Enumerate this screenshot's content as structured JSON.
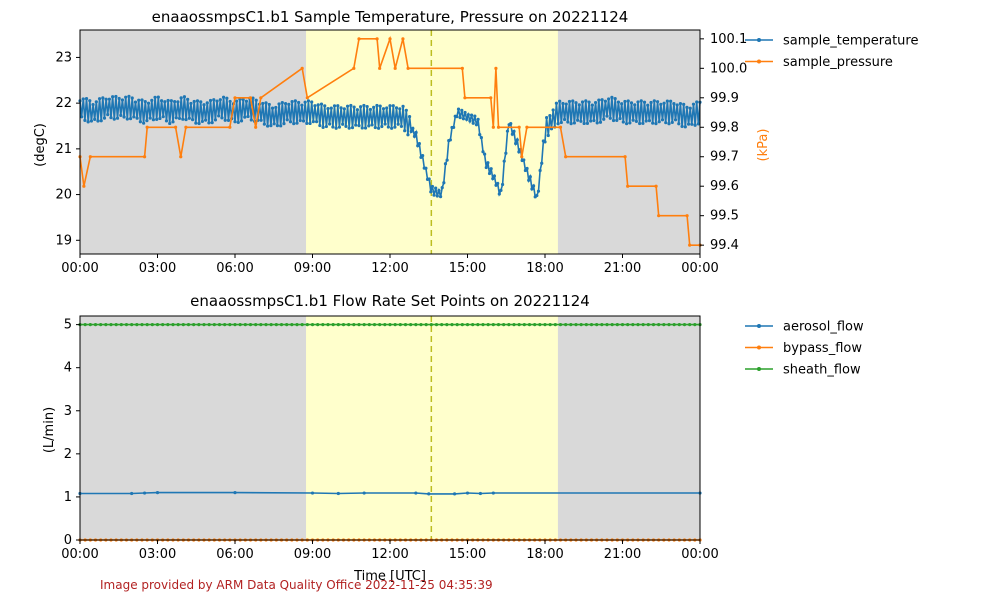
{
  "credit": "Image provided by ARM Data Quality Office 2022-11-25 04:35:39",
  "colors": {
    "blue": "#1f77b4",
    "orange": "#ff7f0e",
    "green": "#2ca02c",
    "night_shade": "#d9d9d9",
    "day_shade": "#ffffcc",
    "solar_noon_line": "#bcbd22"
  },
  "shading": {
    "day_start_hour": 8.75,
    "day_end_hour": 18.5,
    "solar_noon_hour": 13.6
  },
  "chart_data": [
    {
      "type": "line",
      "title": "enaaossmpsC1.b1 Sample Temperature, Pressure on 20221124",
      "xlabel": "",
      "ylabel": "(degC)",
      "ylabel_right": "(kPa)",
      "xlim": [
        0,
        24
      ],
      "ylim": [
        18.7,
        23.6
      ],
      "ylim_right": [
        99.37,
        100.13
      ],
      "x_ticks": [
        "00:00",
        "03:00",
        "06:00",
        "09:00",
        "12:00",
        "15:00",
        "18:00",
        "21:00",
        "00:00"
      ],
      "y_ticks": [
        "19",
        "20",
        "21",
        "22",
        "23"
      ],
      "y_ticks_right": [
        "99.4",
        "99.5",
        "99.6",
        "99.7",
        "99.8",
        "99.9",
        "100.0",
        "100.1"
      ],
      "legend_placement": "outside-right",
      "series": [
        {
          "name": "sample_temperature",
          "axis": "left",
          "color": "#1f77b4",
          "points": [
            [
              0,
              21.9
            ],
            [
              0.5,
              21.8
            ],
            [
              1,
              21.9
            ],
            [
              1.5,
              21.9
            ],
            [
              2,
              21.9
            ],
            [
              2.5,
              21.8
            ],
            [
              3,
              21.9
            ],
            [
              3.5,
              21.8
            ],
            [
              4,
              21.9
            ],
            [
              4.5,
              21.8
            ],
            [
              5,
              21.8
            ],
            [
              5.5,
              21.9
            ],
            [
              6,
              21.8
            ],
            [
              6.5,
              21.9
            ],
            [
              7,
              21.8
            ],
            [
              7.5,
              21.7
            ],
            [
              8,
              21.8
            ],
            [
              8.5,
              21.8
            ],
            [
              9,
              21.8
            ],
            [
              9.5,
              21.7
            ],
            [
              10,
              21.7
            ],
            [
              10.5,
              21.7
            ],
            [
              11,
              21.7
            ],
            [
              11.5,
              21.7
            ],
            [
              12,
              21.7
            ],
            [
              12.5,
              21.7
            ],
            [
              13,
              21.3
            ],
            [
              13.3,
              20.7
            ],
            [
              13.6,
              20.1
            ],
            [
              14,
              20.0
            ],
            [
              14.3,
              21.2
            ],
            [
              14.6,
              21.8
            ],
            [
              15,
              21.7
            ],
            [
              15.4,
              21.6
            ],
            [
              15.7,
              20.7
            ],
            [
              16,
              20.4
            ],
            [
              16.3,
              20.0
            ],
            [
              16.6,
              21.6
            ],
            [
              17,
              21.0
            ],
            [
              17.3,
              20.5
            ],
            [
              17.7,
              19.9
            ],
            [
              18,
              21.4
            ],
            [
              18.5,
              21.8
            ],
            [
              19,
              21.8
            ],
            [
              19.5,
              21.8
            ],
            [
              20,
              21.8
            ],
            [
              20.5,
              21.9
            ],
            [
              21,
              21.8
            ],
            [
              21.5,
              21.8
            ],
            [
              22,
              21.8
            ],
            [
              22.5,
              21.8
            ],
            [
              23,
              21.8
            ],
            [
              23.5,
              21.7
            ],
            [
              24,
              21.8
            ]
          ],
          "oscillation_amplitude_degC": 0.25
        },
        {
          "name": "sample_pressure",
          "axis": "right",
          "color": "#ff7f0e",
          "points": [
            [
              0,
              99.7
            ],
            [
              0.15,
              99.6
            ],
            [
              0.4,
              99.7
            ],
            [
              2.5,
              99.7
            ],
            [
              2.6,
              99.8
            ],
            [
              3.7,
              99.8
            ],
            [
              3.9,
              99.7
            ],
            [
              4.1,
              99.8
            ],
            [
              5.8,
              99.8
            ],
            [
              6,
              99.9
            ],
            [
              6.6,
              99.9
            ],
            [
              6.8,
              99.8
            ],
            [
              7,
              99.9
            ],
            [
              8.8,
              99.9
            ],
            [
              8.6,
              100.0
            ],
            [
              10.6,
              100.0
            ],
            [
              10.8,
              100.1
            ],
            [
              11.5,
              100.1
            ],
            [
              11.6,
              100.0
            ],
            [
              12.0,
              100.1
            ],
            [
              12.2,
              100.0
            ],
            [
              12.5,
              100.1
            ],
            [
              12.7,
              100.0
            ],
            [
              14.8,
              100.0
            ],
            [
              14.9,
              99.9
            ],
            [
              15.9,
              99.9
            ],
            [
              16.0,
              99.8
            ],
            [
              16.1,
              100.0
            ],
            [
              16.2,
              99.8
            ],
            [
              17.0,
              99.8
            ],
            [
              17.1,
              99.7
            ],
            [
              17.3,
              99.8
            ],
            [
              18.6,
              99.8
            ],
            [
              18.8,
              99.7
            ],
            [
              21.1,
              99.7
            ],
            [
              21.2,
              99.6
            ],
            [
              22.3,
              99.6
            ],
            [
              22.4,
              99.5
            ],
            [
              23.5,
              99.5
            ],
            [
              23.6,
              99.4
            ],
            [
              24,
              99.4
            ]
          ]
        }
      ]
    },
    {
      "type": "line",
      "title": "enaaossmpsC1.b1 Flow Rate Set Points on 20221124",
      "xlabel": "Time [UTC]",
      "ylabel": "(L/min)",
      "xlim": [
        0,
        24
      ],
      "ylim": [
        0,
        5.2
      ],
      "x_ticks": [
        "00:00",
        "03:00",
        "06:00",
        "09:00",
        "12:00",
        "15:00",
        "18:00",
        "21:00",
        "00:00"
      ],
      "y_ticks": [
        "0",
        "1",
        "2",
        "3",
        "4",
        "5"
      ],
      "legend_placement": "outside-right",
      "series": [
        {
          "name": "aerosol_flow",
          "color": "#1f77b4",
          "points": [
            [
              0,
              1.08
            ],
            [
              2,
              1.08
            ],
            [
              2.5,
              1.09
            ],
            [
              3,
              1.1
            ],
            [
              6,
              1.1
            ],
            [
              9,
              1.09
            ],
            [
              10,
              1.08
            ],
            [
              11,
              1.09
            ],
            [
              13,
              1.09
            ],
            [
              13.5,
              1.07
            ],
            [
              14.5,
              1.07
            ],
            [
              15,
              1.09
            ],
            [
              15.5,
              1.08
            ],
            [
              16,
              1.09
            ],
            [
              24,
              1.09
            ]
          ]
        },
        {
          "name": "bypass_flow",
          "color": "#ff7f0e",
          "points": [
            [
              0,
              0
            ],
            [
              24,
              0
            ]
          ]
        },
        {
          "name": "sheath_flow",
          "color": "#2ca02c",
          "points": [
            [
              0,
              5.0
            ],
            [
              24,
              5.0
            ]
          ]
        }
      ]
    }
  ]
}
